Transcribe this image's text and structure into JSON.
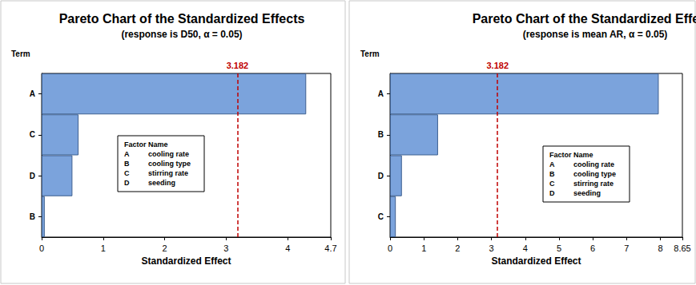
{
  "chart_data": [
    {
      "type": "bar",
      "orientation": "horizontal",
      "title": "Pareto Chart of the Standardized Effects",
      "subtitle": "(response is D50, α = 0.05)",
      "ylabel": "Term",
      "xlabel": "Standardized Effect",
      "categories": [
        "A",
        "C",
        "D",
        "B"
      ],
      "values": [
        4.3,
        0.6,
        0.5,
        0.05
      ],
      "color": "#7ba3dc",
      "xlim": [
        0,
        4.7
      ],
      "xticks": [
        0,
        1,
        2,
        3,
        4
      ],
      "reference_line": {
        "value": 3.182,
        "color": "#c00000"
      },
      "factor_table": {
        "headers": [
          "Factor",
          "Name"
        ],
        "rows": [
          [
            "A",
            "cooling rate"
          ],
          [
            "B",
            "cooling type"
          ],
          [
            "C",
            "stirring rate"
          ],
          [
            "D",
            "seeding"
          ]
        ]
      }
    },
    {
      "type": "bar",
      "orientation": "horizontal",
      "title": "Pareto Chart of the Standardized Effects",
      "subtitle": "(response is mean AR, α = 0.05)",
      "ylabel": "Term",
      "xlabel": "Standardized Effect",
      "categories": [
        "A",
        "B",
        "D",
        "C"
      ],
      "values": [
        7.95,
        1.42,
        0.35,
        0.17
      ],
      "color": "#7ba3dc",
      "xlim": [
        0,
        8.65
      ],
      "xticks": [
        0,
        1,
        2,
        3,
        4,
        5,
        6,
        7,
        8
      ],
      "reference_line": {
        "value": 3.182,
        "color": "#c00000"
      },
      "factor_table": {
        "headers": [
          "Factor",
          "Name"
        ],
        "rows": [
          [
            "A",
            "cooling rate"
          ],
          [
            "B",
            "cooling type"
          ],
          [
            "C",
            "stirring rate"
          ],
          [
            "D",
            "seeding"
          ]
        ]
      }
    }
  ]
}
